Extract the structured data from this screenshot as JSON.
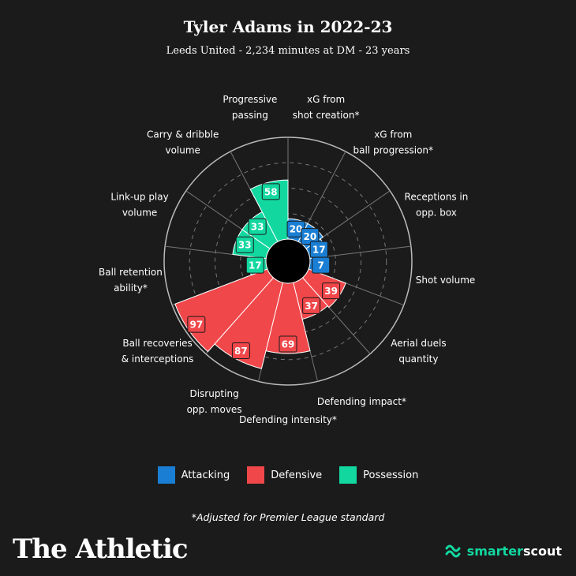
{
  "header": {
    "title": "Tyler Adams in 2022-23",
    "subtitle": "Leeds United - 2,234 minutes at DM - 23 years"
  },
  "colors": {
    "Attacking": "#1a7fd4",
    "Defensive": "#f0474a",
    "Possession": "#12d8a0",
    "background": "#1b1b1b",
    "grid": "#777777"
  },
  "chart_data": {
    "type": "polar-bar",
    "title": "Tyler Adams in 2022-23",
    "rlim": [
      0,
      100
    ],
    "grid": true,
    "legend_placement": "bottom",
    "categories": [
      {
        "label": [
          "xG from",
          "shot creation*"
        ],
        "value": 20,
        "group": "Attacking"
      },
      {
        "label": [
          "xG from",
          "ball progression*"
        ],
        "value": 20,
        "group": "Attacking"
      },
      {
        "label": [
          "Receptions in",
          "opp. box"
        ],
        "value": 17,
        "group": "Attacking"
      },
      {
        "label": [
          "Shot volume"
        ],
        "value": 7,
        "group": "Attacking"
      },
      {
        "label": [
          "Aerial duels",
          "quantity"
        ],
        "value": 39,
        "group": "Defensive"
      },
      {
        "label": [
          "Defending impact*"
        ],
        "value": 37,
        "group": "Defensive"
      },
      {
        "label": [
          "Defending intensity*"
        ],
        "value": 69,
        "group": "Defensive"
      },
      {
        "label": [
          "Disrupting",
          "opp. moves"
        ],
        "value": 87,
        "group": "Defensive"
      },
      {
        "label": [
          "Ball recoveries",
          "& interceptions"
        ],
        "value": 97,
        "group": "Defensive"
      },
      {
        "label": [
          "Ball retention",
          "ability*"
        ],
        "value": 17,
        "group": "Possession"
      },
      {
        "label": [
          "Link-up play",
          "volume"
        ],
        "value": 33,
        "group": "Possession"
      },
      {
        "label": [
          "Carry & dribble",
          "volume"
        ],
        "value": 33,
        "group": "Possession"
      },
      {
        "label": [
          "Progressive",
          "passing"
        ],
        "value": 58,
        "group": "Possession"
      }
    ]
  },
  "legend": [
    {
      "name": "Attacking",
      "label": "Attacking"
    },
    {
      "name": "Defensive",
      "label": "Defensive"
    },
    {
      "name": "Possession",
      "label": "Possession"
    }
  ],
  "footnote": "*Adjusted for Premier League standard",
  "branding": {
    "publisher": "The Athletic",
    "partner": "smarterscout"
  }
}
